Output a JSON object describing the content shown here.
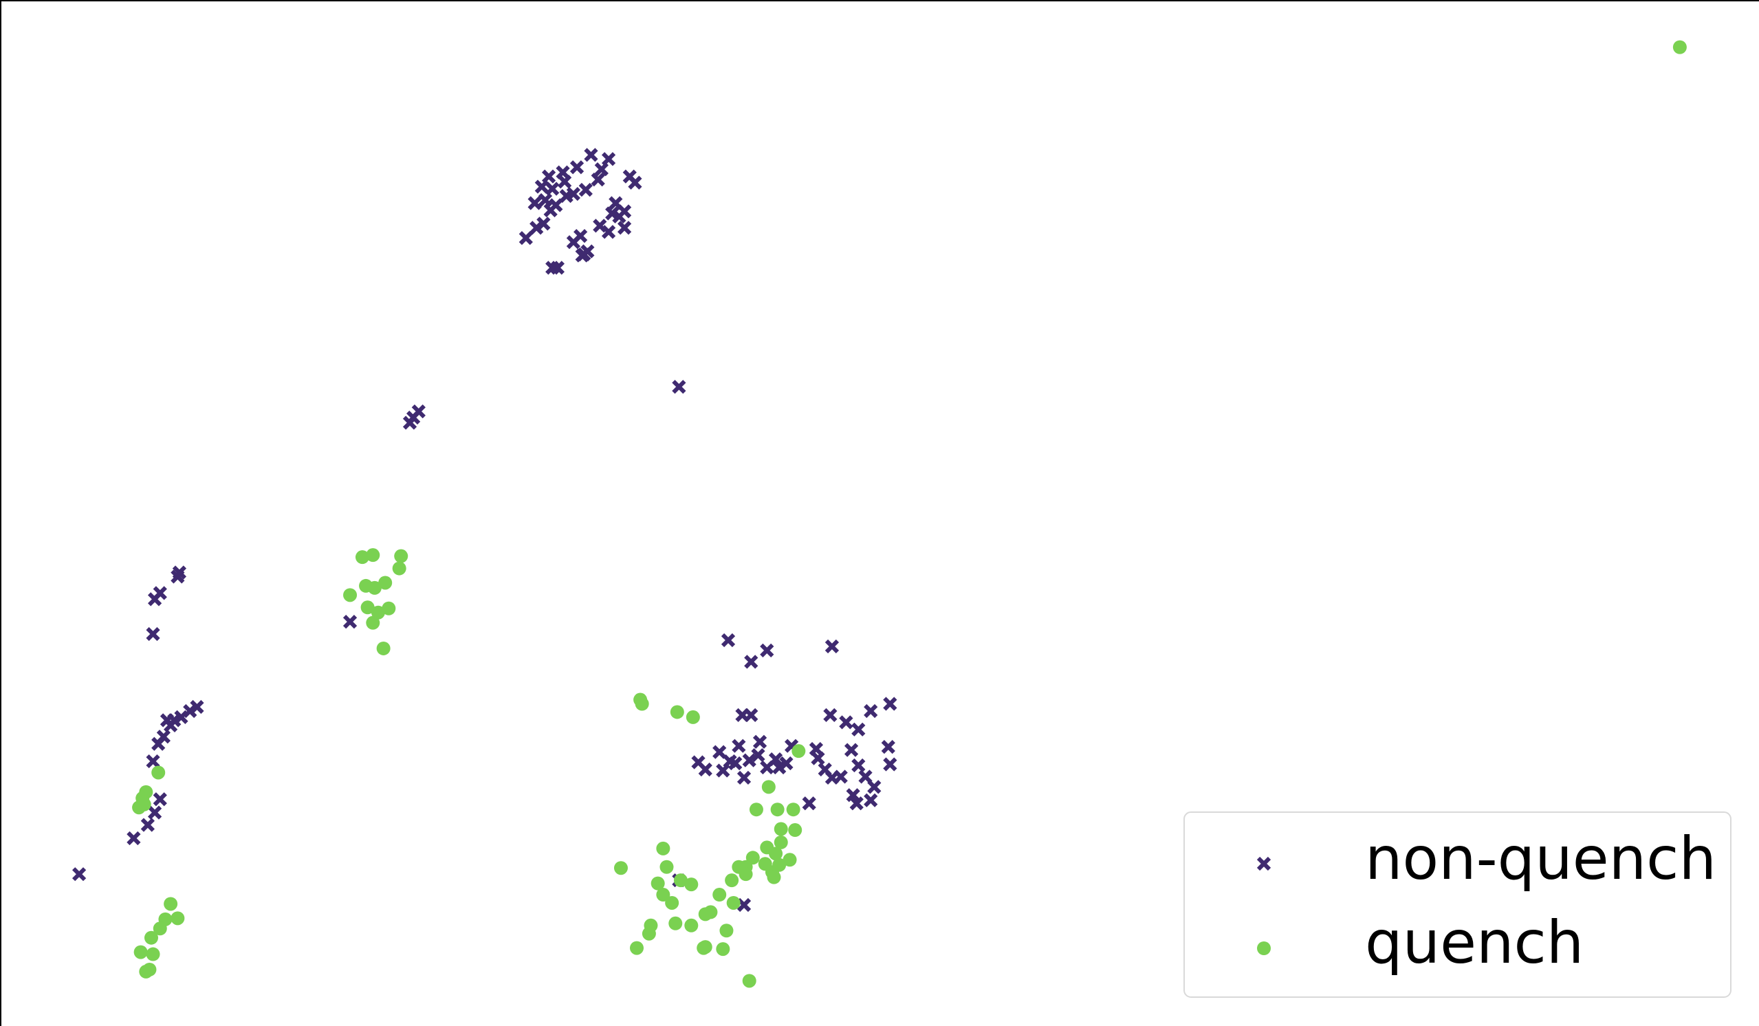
{
  "chart_data": {
    "type": "scatter",
    "title": "",
    "xlabel": "",
    "ylabel": "",
    "grid": false,
    "axes_visible": "left and top spines only, no ticks",
    "legend_placement": "lower-right",
    "xlim": [
      0,
      100
    ],
    "ylim": [
      0,
      100
    ],
    "series": [
      {
        "name": "non-quench",
        "marker": "x",
        "color": "#3f2a70",
        "points": [
          [
            4.5,
            14.8
          ],
          [
            7.6,
            18.3
          ],
          [
            8.4,
            19.6
          ],
          [
            9.1,
            22.1
          ],
          [
            8.8,
            20.8
          ],
          [
            8.7,
            25.8
          ],
          [
            9.0,
            27.5
          ],
          [
            9.3,
            28.2
          ],
          [
            9.7,
            29.3
          ],
          [
            9.9,
            29.8
          ],
          [
            10.3,
            30.1
          ],
          [
            10.8,
            30.7
          ],
          [
            11.2,
            31.1
          ],
          [
            9.5,
            29.8
          ],
          [
            8.7,
            38.2
          ],
          [
            8.8,
            41.6
          ],
          [
            9.1,
            42.2
          ],
          [
            10.1,
            43.8
          ],
          [
            10.2,
            44.2
          ],
          [
            19.9,
            39.4
          ],
          [
            23.3,
            58.8
          ],
          [
            23.8,
            59.9
          ],
          [
            23.5,
            59.3
          ],
          [
            29.9,
            76.8
          ],
          [
            30.5,
            77.8
          ],
          [
            30.9,
            78.2
          ],
          [
            31.3,
            79.5
          ],
          [
            31.7,
            73.9
          ],
          [
            31.0,
            80.5
          ],
          [
            31.4,
            81.6
          ],
          [
            32.0,
            83.2
          ],
          [
            32.6,
            81.1
          ],
          [
            30.4,
            80.2
          ],
          [
            30.8,
            81.8
          ],
          [
            31.2,
            82.8
          ],
          [
            31.6,
            80.0
          ],
          [
            32.2,
            80.9
          ],
          [
            32.8,
            83.7
          ],
          [
            33.3,
            81.5
          ],
          [
            32.1,
            82.3
          ],
          [
            33.6,
            84.9
          ],
          [
            34.2,
            83.5
          ],
          [
            34.6,
            84.5
          ],
          [
            34.0,
            82.5
          ],
          [
            34.1,
            78.0
          ],
          [
            33.0,
            77.0
          ],
          [
            32.6,
            76.4
          ],
          [
            33.4,
            75.5
          ],
          [
            34.6,
            77.4
          ],
          [
            35.2,
            78.9
          ],
          [
            35.0,
            80.2
          ],
          [
            34.8,
            79.2
          ],
          [
            33.1,
            75.1
          ],
          [
            36.1,
            82.2
          ],
          [
            35.5,
            77.8
          ],
          [
            35.8,
            82.8
          ],
          [
            31.4,
            73.9
          ],
          [
            33.2,
            75.2
          ],
          [
            35.5,
            79.4
          ],
          [
            38.6,
            62.3
          ],
          [
            41.4,
            37.6
          ],
          [
            42.7,
            35.5
          ],
          [
            43.6,
            36.6
          ],
          [
            47.3,
            37.0
          ],
          [
            42.2,
            30.3
          ],
          [
            42.7,
            30.3
          ],
          [
            39.7,
            25.7
          ],
          [
            40.1,
            25.0
          ],
          [
            40.9,
            26.7
          ],
          [
            41.5,
            25.8
          ],
          [
            42.0,
            27.3
          ],
          [
            42.6,
            25.9
          ],
          [
            43.1,
            26.4
          ],
          [
            43.6,
            25.2
          ],
          [
            44.1,
            26.0
          ],
          [
            44.3,
            25.2
          ],
          [
            43.2,
            27.7
          ],
          [
            45.0,
            27.3
          ],
          [
            41.1,
            24.9
          ],
          [
            42.3,
            24.2
          ],
          [
            41.8,
            25.6
          ],
          [
            44.7,
            25.6
          ],
          [
            46.4,
            27.0
          ],
          [
            46.5,
            26.1
          ],
          [
            47.3,
            24.2
          ],
          [
            46.9,
            25.0
          ],
          [
            47.8,
            24.3
          ],
          [
            47.2,
            30.3
          ],
          [
            48.8,
            28.9
          ],
          [
            48.1,
            29.6
          ],
          [
            49.5,
            30.7
          ],
          [
            48.4,
            26.9
          ],
          [
            48.8,
            25.4
          ],
          [
            49.2,
            24.3
          ],
          [
            49.7,
            23.3
          ],
          [
            48.7,
            21.7
          ],
          [
            48.5,
            22.5
          ],
          [
            49.5,
            22.0
          ],
          [
            50.5,
            27.2
          ],
          [
            50.6,
            25.5
          ],
          [
            50.6,
            31.4
          ],
          [
            46.0,
            21.7
          ],
          [
            42.3,
            11.8
          ],
          [
            38.6,
            14.2
          ]
        ]
      },
      {
        "name": "quench",
        "marker": "o",
        "color": "#7ad151",
        "points": [
          [
            95.5,
            95.4
          ],
          [
            20.6,
            45.7
          ],
          [
            21.2,
            45.9
          ],
          [
            22.8,
            45.8
          ],
          [
            22.7,
            44.6
          ],
          [
            19.9,
            42.0
          ],
          [
            20.8,
            42.9
          ],
          [
            21.3,
            42.7
          ],
          [
            21.9,
            43.2
          ],
          [
            20.9,
            40.8
          ],
          [
            21.5,
            40.3
          ],
          [
            22.1,
            40.7
          ],
          [
            21.2,
            39.3
          ],
          [
            21.8,
            36.8
          ],
          [
            9.0,
            24.7
          ],
          [
            8.3,
            22.8
          ],
          [
            8.1,
            22.2
          ],
          [
            7.9,
            21.3
          ],
          [
            8.2,
            21.6
          ],
          [
            9.7,
            11.9
          ],
          [
            9.4,
            10.4
          ],
          [
            10.1,
            10.5
          ],
          [
            9.1,
            9.5
          ],
          [
            8.6,
            8.6
          ],
          [
            8.0,
            7.2
          ],
          [
            8.7,
            7.0
          ],
          [
            8.3,
            5.3
          ],
          [
            8.5,
            5.5
          ],
          [
            36.4,
            31.8
          ],
          [
            36.5,
            31.4
          ],
          [
            38.5,
            30.6
          ],
          [
            39.4,
            30.1
          ],
          [
            45.4,
            26.8
          ],
          [
            43.7,
            23.3
          ],
          [
            43.0,
            21.1
          ],
          [
            44.2,
            21.1
          ],
          [
            45.1,
            21.1
          ],
          [
            44.4,
            19.2
          ],
          [
            45.2,
            19.1
          ],
          [
            44.4,
            17.9
          ],
          [
            43.6,
            17.4
          ],
          [
            44.1,
            16.8
          ],
          [
            42.8,
            16.4
          ],
          [
            43.5,
            15.8
          ],
          [
            42.4,
            15.5
          ],
          [
            44.9,
            16.2
          ],
          [
            43.9,
            15.0
          ],
          [
            44.0,
            14.5
          ],
          [
            41.6,
            14.2
          ],
          [
            42.4,
            14.8
          ],
          [
            42.0,
            15.5
          ],
          [
            44.3,
            15.7
          ],
          [
            35.3,
            15.4
          ],
          [
            37.7,
            17.3
          ],
          [
            37.9,
            15.5
          ],
          [
            38.7,
            14.2
          ],
          [
            37.7,
            12.8
          ],
          [
            38.2,
            12.0
          ],
          [
            39.3,
            13.8
          ],
          [
            37.4,
            13.9
          ],
          [
            38.4,
            10.0
          ],
          [
            37.0,
            9.8
          ],
          [
            40.4,
            11.1
          ],
          [
            40.9,
            12.8
          ],
          [
            41.7,
            12.0
          ],
          [
            40.1,
            10.9
          ],
          [
            41.3,
            9.3
          ],
          [
            36.9,
            9.0
          ],
          [
            39.3,
            9.8
          ],
          [
            40.1,
            7.7
          ],
          [
            41.1,
            7.5
          ],
          [
            36.2,
            7.6
          ],
          [
            40.0,
            7.6
          ],
          [
            42.6,
            4.4
          ]
        ]
      }
    ]
  }
}
